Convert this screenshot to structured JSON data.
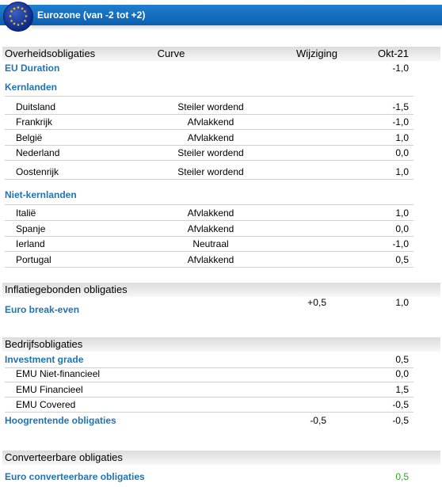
{
  "banner": {
    "title": "Eurozone (van -2 tot +2)",
    "flag_icon": "eu-flag-icon"
  },
  "headers": {
    "col1": "Overheidsobligaties",
    "col2": "Curve",
    "col3": "Wijziging",
    "col4": "Okt-21"
  },
  "eu_duration": {
    "label": "EU Duration",
    "okt": "-1,0"
  },
  "kern": {
    "title": "Kernlanden",
    "rows": [
      {
        "label": "Duitsland",
        "curve": "Steiler wordend",
        "okt": "-1,5"
      },
      {
        "label": "Frankrijk",
        "curve": "Afvlakkend",
        "okt": "-1,0"
      },
      {
        "label": "België",
        "curve": "Afvlakkend",
        "okt": "1,0"
      },
      {
        "label": "Nederland",
        "curve": "Steiler wordend",
        "okt": "0,0"
      },
      {
        "label": "Oostenrijk",
        "curve": "Steiler wordend",
        "okt": "1,0"
      }
    ]
  },
  "niet_kern": {
    "title": "Niet-kernlanden",
    "rows": [
      {
        "label": "Italië",
        "curve": "Afvlakkend",
        "okt": "1,0"
      },
      {
        "label": "Spanje",
        "curve": "Afvlakkend",
        "okt": "0,0"
      },
      {
        "label": "Ierland",
        "curve": "Neutraal",
        "okt": "-1,0"
      },
      {
        "label": "Portugal",
        "curve": "Afvlakkend",
        "okt": "0,5"
      }
    ]
  },
  "inflatie": {
    "header": "Inflatiegebonden obligaties",
    "label": "Euro break-even",
    "wijz": "+0,5",
    "okt": "1,0"
  },
  "bedrijf": {
    "header": "Bedrijfsobligaties",
    "ig": {
      "label": "Investment grade",
      "okt": "0,5"
    },
    "rows": [
      {
        "label": "EMU Niet-financieel",
        "okt": "0,0"
      },
      {
        "label": "EMU Financieel",
        "okt": "1,5"
      },
      {
        "label": "EMU Covered",
        "okt": "-0,5"
      }
    ],
    "hy": {
      "label": "Hoogrentende obligaties",
      "wijz": "-0,5",
      "okt": "-0,5"
    }
  },
  "convert": {
    "header": "Converteerbare obligaties",
    "label": "Euro converteerbare obligaties",
    "okt": "0,5",
    "okt_color": "#33a02c"
  }
}
